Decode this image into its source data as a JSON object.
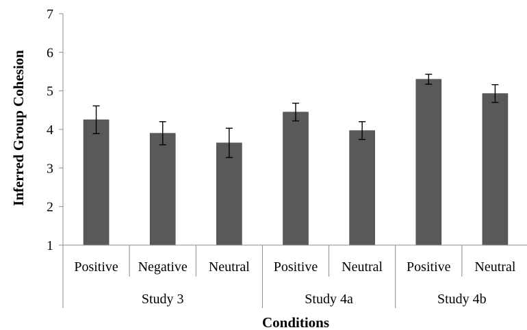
{
  "chart_data": {
    "type": "bar",
    "xlabel": "Conditions",
    "ylabel": "Inferred Group Cohesion",
    "ylim": [
      1,
      7
    ],
    "yticks": [
      "1",
      "2",
      "3",
      "4",
      "5",
      "6",
      "7"
    ],
    "grid": false,
    "legend": "none",
    "bar_color": "#595959",
    "error_color": "#000000",
    "categories": [
      "Positive",
      "Negative",
      "Neutral",
      "Positive",
      "Neutral",
      "Positive",
      "Neutral"
    ],
    "values": [
      4.25,
      3.9,
      3.65,
      4.45,
      3.97,
      5.3,
      4.93
    ],
    "errors": [
      0.36,
      0.3,
      0.38,
      0.23,
      0.23,
      0.13,
      0.23
    ],
    "groups": [
      {
        "label": "Study 3",
        "span": [
          0,
          2
        ]
      },
      {
        "label": "Study 4a",
        "span": [
          3,
          4
        ]
      },
      {
        "label": "Study 4b",
        "span": [
          5,
          6
        ]
      }
    ]
  }
}
